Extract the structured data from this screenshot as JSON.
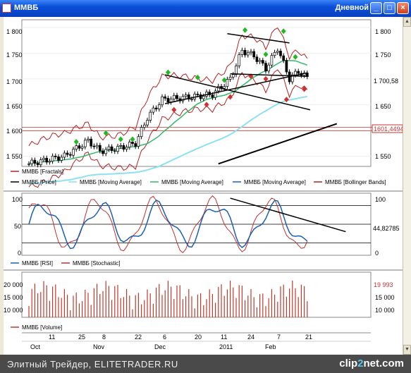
{
  "window": {
    "title": "ММВБ",
    "period": "Дневной",
    "btn_min": "_",
    "btn_max": "□",
    "btn_close": "×"
  },
  "chart_data": {
    "type": "line",
    "price_panel": {
      "y_ticks": [
        "1 800",
        "1 750",
        "1 700",
        "1 650",
        "1 600",
        "1 550"
      ],
      "y_ticks_right": [
        "1 800",
        "1 750",
        "1 650",
        "1 550"
      ],
      "last_price": "1 700,58",
      "line_level": "1601,44945",
      "ylim": [
        1530,
        1815
      ],
      "legend": [
        "ММВБ [Fractals]",
        "ММВБ [Price]",
        "ММВБ [Moving Average]",
        "ММВБ [Moving Average]",
        "ММВБ [Moving Average]",
        "ММВБ [Bollinger Bands]"
      ]
    },
    "oscillator_panel": {
      "y_ticks": [
        "100",
        "50",
        "0"
      ],
      "y_ticks_right": [
        "100",
        "50",
        "0"
      ],
      "last_value": "44,82785",
      "legend": [
        "ММВБ [RSI]",
        "ММВБ [Stochastic]"
      ]
    },
    "volume_panel": {
      "y_ticks": [
        "20 000",
        "15 000",
        "10 000"
      ],
      "y_ticks_right": [
        "15 000",
        "10 000"
      ],
      "last_value": "19 993",
      "legend": [
        "ММВБ [Volume]"
      ]
    },
    "x_days": [
      "11",
      "25",
      "8",
      "22",
      "6",
      "20",
      "11",
      "24",
      "7",
      "21"
    ],
    "x_months": [
      "Oct",
      "Nov",
      "Dec",
      "2011",
      "Feb"
    ]
  },
  "footer": {
    "credit": "Элитный Трейдер, ELITETRADER.RU",
    "brand_a": "clip",
    "brand_b": "2",
    "brand_c": "net.com"
  },
  "colors": {
    "price_candle": "#000000",
    "ma_fast": "#2fb86a",
    "ma_slow": "#8ce0f0",
    "ma_mid": "#9ad8c0",
    "bollinger": "#b22222",
    "fractal_up": "#22b822",
    "fractal_down": "#d03030",
    "rsi": "#1a5fb4",
    "stochastic": "#c03030",
    "volume": "#c0392b",
    "trendline": "#000000"
  }
}
